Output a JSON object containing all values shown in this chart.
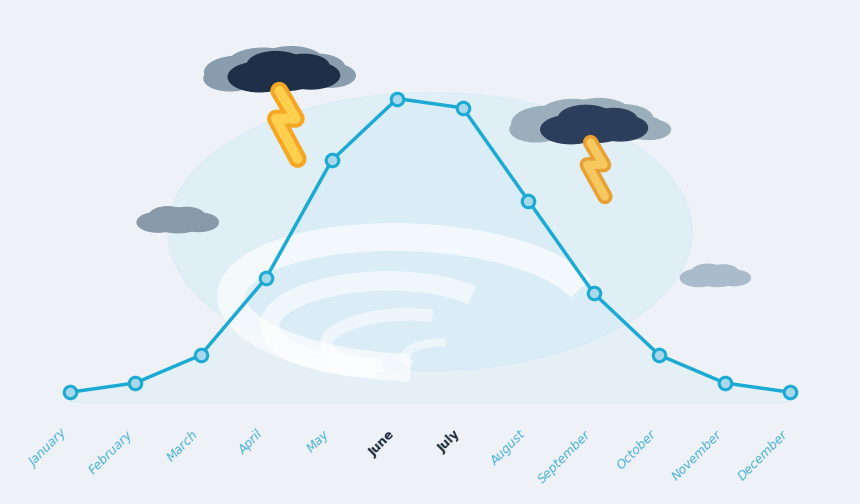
{
  "months": [
    "January",
    "February",
    "March",
    "April",
    "May",
    "June",
    "July",
    "August",
    "September",
    "October",
    "November",
    "December"
  ],
  "values": [
    0.3,
    0.6,
    1.5,
    4.0,
    7.8,
    9.8,
    9.5,
    6.5,
    3.5,
    1.5,
    0.6,
    0.3
  ],
  "line_color": "#1aaad4",
  "marker_facecolor": "#a8d8ea",
  "marker_edgecolor": "#1aaad4",
  "fill_color": "#c5e8f5",
  "background_color": "#eef2f7",
  "swirl_color": "#ffffff",
  "cloud1_dark": "#1e3048",
  "cloud1_light": "#8899aa",
  "cloud2_dark": "#2b3f5c",
  "cloud2_light": "#9aabb8",
  "cloud3_color": "#8899aa",
  "cloud4_color": "#aabbcc",
  "lightning1_outer": "#f5a623",
  "lightning1_inner": "#ffd050",
  "lightning2_outer": "#e8a030",
  "lightning2_inner": "#f5c860",
  "label_color_default": "#4ab0d8",
  "label_color_bold": "#1a2a3a",
  "bold_months": [
    "June",
    "July"
  ],
  "xlim": [
    -0.8,
    11.8
  ],
  "ylim": [
    -2.5,
    12.5
  ]
}
